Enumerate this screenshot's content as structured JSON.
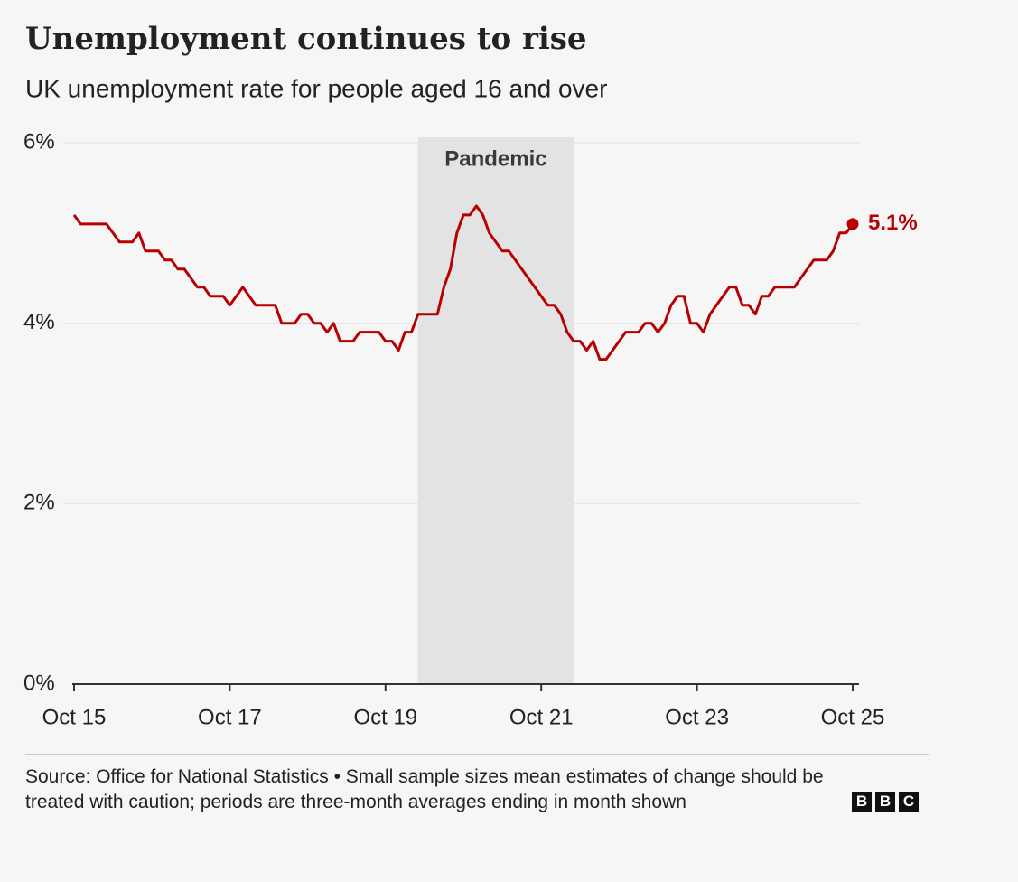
{
  "chart_data": {
    "type": "line",
    "title": "Unemployment continues to rise",
    "subtitle": "UK unemployment rate for people aged 16 and over",
    "categories": [
      "Oct 15",
      null,
      null,
      null,
      null,
      null,
      null,
      null,
      null,
      null,
      null,
      null,
      null,
      null,
      null,
      null,
      null,
      null,
      null,
      null,
      null,
      null,
      null,
      null,
      "Oct 17",
      null,
      null,
      null,
      null,
      null,
      null,
      null,
      null,
      null,
      null,
      null,
      null,
      null,
      null,
      null,
      null,
      null,
      null,
      null,
      null,
      null,
      null,
      null,
      "Oct 19",
      null,
      null,
      null,
      null,
      null,
      null,
      null,
      null,
      null,
      null,
      null,
      null,
      null,
      null,
      null,
      null,
      null,
      null,
      null,
      null,
      null,
      null,
      null,
      "Oct 21",
      null,
      null,
      null,
      null,
      null,
      null,
      null,
      null,
      null,
      null,
      null,
      null,
      null,
      null,
      null,
      null,
      null,
      null,
      null,
      null,
      null,
      null,
      null,
      "Oct 23",
      null,
      null,
      null,
      null,
      null,
      null,
      null,
      null,
      null,
      null,
      null,
      null,
      null,
      null,
      null,
      null,
      null,
      null,
      null,
      null,
      null,
      null,
      null,
      "Oct 25"
    ],
    "series": [
      {
        "name": "Unemployment rate",
        "color": "#b80000",
        "values": [
          5.2,
          5.1,
          5.1,
          5.1,
          5.1,
          5.1,
          5.0,
          4.9,
          4.9,
          4.9,
          5.0,
          4.8,
          4.8,
          4.8,
          4.7,
          4.7,
          4.6,
          4.6,
          4.5,
          4.4,
          4.4,
          4.3,
          4.3,
          4.3,
          4.2,
          4.3,
          4.4,
          4.3,
          4.2,
          4.2,
          4.2,
          4.2,
          4.0,
          4.0,
          4.0,
          4.1,
          4.1,
          4.0,
          4.0,
          3.9,
          4.0,
          3.8,
          3.8,
          3.8,
          3.9,
          3.9,
          3.9,
          3.9,
          3.8,
          3.8,
          3.7,
          3.9,
          3.9,
          4.1,
          4.1,
          4.1,
          4.1,
          4.4,
          4.6,
          5.0,
          5.2,
          5.2,
          5.3,
          5.2,
          5.0,
          4.9,
          4.8,
          4.8,
          4.7,
          4.6,
          4.5,
          4.4,
          4.3,
          4.2,
          4.2,
          4.1,
          3.9,
          3.8,
          3.8,
          3.7,
          3.8,
          3.6,
          3.6,
          3.7,
          3.8,
          3.9,
          3.9,
          3.9,
          4.0,
          4.0,
          3.9,
          4.0,
          4.2,
          4.3,
          4.3,
          4.0,
          4.0,
          3.9,
          4.1,
          4.2,
          4.3,
          4.4,
          4.4,
          4.2,
          4.2,
          4.1,
          4.3,
          4.3,
          4.4,
          4.4,
          4.4,
          4.4,
          4.5,
          4.6,
          4.7,
          4.7,
          4.7,
          4.8,
          5.0,
          5.0,
          5.1
        ]
      }
    ],
    "end_value_label": "5.1%",
    "shaded_region": {
      "label": "Pandemic",
      "start": 53,
      "end": 77
    },
    "ylim": [
      0,
      6
    ],
    "yticks": [
      {
        "value": 0,
        "label": "0%"
      },
      {
        "value": 2,
        "label": "2%"
      },
      {
        "value": 4,
        "label": "4%"
      },
      {
        "value": 6,
        "label": "6%"
      }
    ],
    "grid": true,
    "note": "Source: Office for National Statistics • Small sample sizes mean estimates of change should be treated with caution; periods are three-month averages ending in month shown",
    "logo": [
      "B",
      "B",
      "C"
    ]
  }
}
